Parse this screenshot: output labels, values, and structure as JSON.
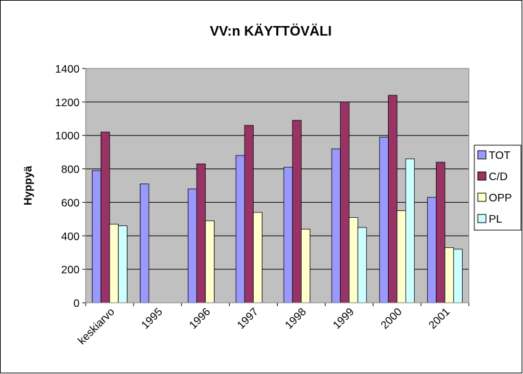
{
  "chart_data": {
    "type": "bar",
    "title": "VV:n KÄYTTÖVÄLI",
    "y_label": "Hyppyä",
    "categories": [
      "keskiarvo",
      "1995",
      "1996",
      "1997",
      "1998",
      "1999",
      "2000",
      "2001"
    ],
    "series": [
      {
        "name": "TOT",
        "color": "#9999ff",
        "values": [
          790,
          710,
          680,
          880,
          810,
          920,
          990,
          630
        ]
      },
      {
        "name": "C/D",
        "color": "#993366",
        "values": [
          1020,
          null,
          830,
          1060,
          1090,
          1200,
          1240,
          840
        ]
      },
      {
        "name": "OPP",
        "color": "#ffffcc",
        "values": [
          470,
          null,
          490,
          540,
          440,
          510,
          550,
          330
        ]
      },
      {
        "name": "PL",
        "color": "#ccffff",
        "values": [
          460,
          null,
          null,
          null,
          null,
          450,
          860,
          320
        ]
      }
    ],
    "ylim": [
      0,
      1400
    ],
    "yticks": [
      0,
      200,
      400,
      600,
      800,
      1000,
      1200,
      1400
    ],
    "grid": true,
    "plot_background": "#c0c0c0",
    "legend": "right"
  }
}
